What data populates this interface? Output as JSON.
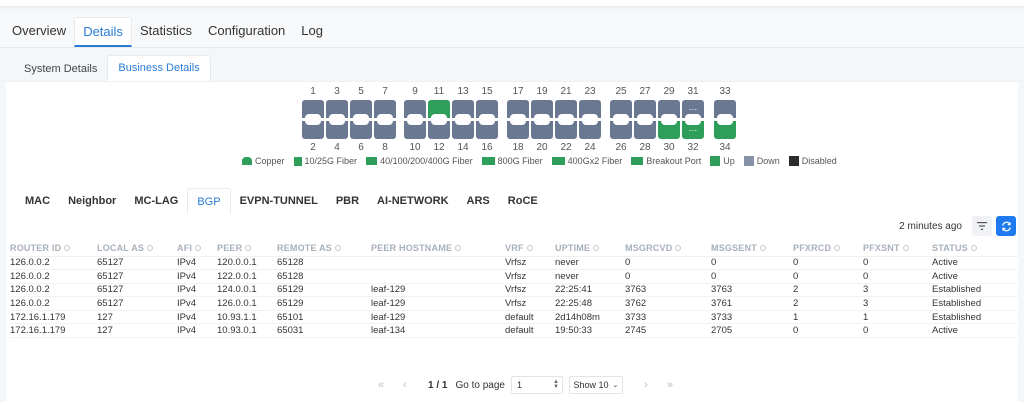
{
  "main_tabs": [
    {
      "label": "Overview",
      "active": false
    },
    {
      "label": "Details",
      "active": true
    },
    {
      "label": "Statistics",
      "active": false
    },
    {
      "label": "Configuration",
      "active": false
    },
    {
      "label": "Log",
      "active": false
    }
  ],
  "sub_tabs": [
    {
      "label": "System Details",
      "active": false
    },
    {
      "label": "Business Details",
      "active": true
    }
  ],
  "ports": {
    "top_numbers": [
      "1",
      "3",
      "5",
      "7",
      "9",
      "11",
      "13",
      "15",
      "17",
      "19",
      "21",
      "23",
      "25",
      "27",
      "29",
      "31",
      "33"
    ],
    "bottom_numbers": [
      "2",
      "4",
      "6",
      "8",
      "10",
      "12",
      "14",
      "16",
      "18",
      "20",
      "22",
      "24",
      "26",
      "28",
      "30",
      "32",
      "34"
    ],
    "status": {
      "1": "down",
      "2": "down",
      "3": "down",
      "4": "down",
      "5": "down",
      "6": "down",
      "7": "down",
      "8": "down",
      "9": "down",
      "10": "down",
      "11": "up",
      "12": "down",
      "13": "down",
      "14": "down",
      "15": "down",
      "16": "down",
      "17": "down",
      "18": "down",
      "19": "down",
      "20": "down",
      "21": "down",
      "22": "down",
      "23": "down",
      "24": "down",
      "25": "down",
      "26": "down",
      "27": "down",
      "28": "down",
      "29": "down",
      "30": "up",
      "31": "down-breakout",
      "32": "up-breakout",
      "33": "down",
      "34": "up"
    },
    "breakout_glyph": "…"
  },
  "legend": [
    {
      "label": "Copper",
      "type": "copper"
    },
    {
      "label": "10/25G Fiber",
      "type": "f1"
    },
    {
      "label": "40/100/200/400G Fiber",
      "type": "f2"
    },
    {
      "label": "800G Fiber",
      "type": "f3"
    },
    {
      "label": "400Gx2 Fiber",
      "type": "f4"
    },
    {
      "label": "Breakout Port",
      "type": "brk"
    },
    {
      "label": "Up",
      "type": "up"
    },
    {
      "label": "Down",
      "type": "down"
    },
    {
      "label": "Disabled",
      "type": "dis"
    }
  ],
  "colors": {
    "accent": "#2a7bd6",
    "port_up": "#2f9e5b",
    "port_down": "#6b7891",
    "refresh_button": "#1f7af0"
  },
  "protocol_tabs": [
    {
      "label": "MAC",
      "active": false
    },
    {
      "label": "Neighbor",
      "active": false
    },
    {
      "label": "MC-LAG",
      "active": false
    },
    {
      "label": "BGP",
      "active": true
    },
    {
      "label": "EVPN-TUNNEL",
      "active": false
    },
    {
      "label": "PBR",
      "active": false
    },
    {
      "label": "AI-NETWORK",
      "active": false
    },
    {
      "label": "ARS",
      "active": false
    },
    {
      "label": "RoCE",
      "active": false
    }
  ],
  "toolbar": {
    "updated": "2 minutes ago",
    "filter_icon": "filter-icon",
    "refresh_icon": "refresh-icon"
  },
  "table": {
    "columns": [
      "ROUTER ID",
      "LOCAL AS",
      "AFI",
      "PEER",
      "REMOTE AS",
      "PEER HOSTNAME",
      "VRF",
      "UPTIME",
      "MSGRCVD",
      "MSGSENT",
      "PFXRCD",
      "PFXSNT",
      "STATUS"
    ],
    "rows": [
      [
        "126.0.0.2",
        "65127",
        "IPv4",
        "120.0.0.1",
        "65128",
        "",
        "Vrfsz",
        "never",
        "0",
        "0",
        "0",
        "0",
        "Active"
      ],
      [
        "126.0.0.2",
        "65127",
        "IPv4",
        "122.0.0.1",
        "65128",
        "",
        "Vrfsz",
        "never",
        "0",
        "0",
        "0",
        "0",
        "Active"
      ],
      [
        "126.0.0.2",
        "65127",
        "IPv4",
        "124.0.0.1",
        "65129",
        "leaf-129",
        "Vrfsz",
        "22:25:41",
        "3763",
        "3763",
        "2",
        "3",
        "Established"
      ],
      [
        "126.0.0.2",
        "65127",
        "IPv4",
        "126.0.0.1",
        "65129",
        "leaf-129",
        "Vrfsz",
        "22:25:48",
        "3762",
        "3761",
        "2",
        "3",
        "Established"
      ],
      [
        "172.16.1.179",
        "127",
        "IPv4",
        "10.93.1.1",
        "65101",
        "leaf-129",
        "default",
        "2d14h08m",
        "3733",
        "3733",
        "1",
        "1",
        "Established"
      ],
      [
        "172.16.1.179",
        "127",
        "IPv4",
        "10.93.0.1",
        "65031",
        "leaf-134",
        "default",
        "19:50:33",
        "2745",
        "2705",
        "0",
        "0",
        "Active"
      ]
    ]
  },
  "pagination": {
    "page_info": "1 / 1",
    "goto_label": "Go to page",
    "goto_value": "1",
    "page_size": "Show 10"
  }
}
